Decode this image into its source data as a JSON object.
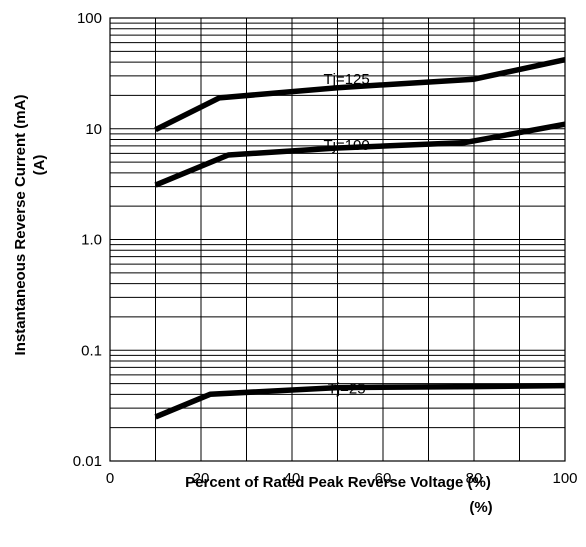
{
  "chart_data": {
    "type": "line",
    "title": "",
    "xlabel": "Percent of Rated Peak Reverse Voltage (%)",
    "xlabel_extra": "(%)",
    "ylabel": "Instantaneous Reverse Current (mA)",
    "ylabel_extra": "(A)",
    "xlim": [
      0,
      100
    ],
    "ylim": [
      0.01,
      100
    ],
    "yscale": "log",
    "grid": true,
    "x_ticks": [
      0,
      20,
      40,
      60,
      80,
      100
    ],
    "x_tick_labels": [
      "0",
      "20",
      "40",
      "60",
      "80",
      "100"
    ],
    "y_ticks": [
      0.01,
      0.1,
      1,
      10,
      100
    ],
    "y_tick_labels": [
      "0.01",
      "0.1",
      "1.0",
      "10",
      "100"
    ],
    "series": [
      {
        "name": "Tj=125",
        "x": [
          10,
          24,
          50,
          80,
          100
        ],
        "y": [
          9.8,
          19,
          23.5,
          28,
          42
        ]
      },
      {
        "name": "Tj=100",
        "x": [
          10,
          26,
          50,
          78,
          100
        ],
        "y": [
          3.1,
          5.8,
          6.7,
          7.5,
          11
        ]
      },
      {
        "name": "Tj=25",
        "x": [
          10,
          22,
          50,
          80,
          100
        ],
        "y": [
          0.025,
          0.04,
          0.046,
          0.047,
          0.048
        ]
      }
    ]
  }
}
